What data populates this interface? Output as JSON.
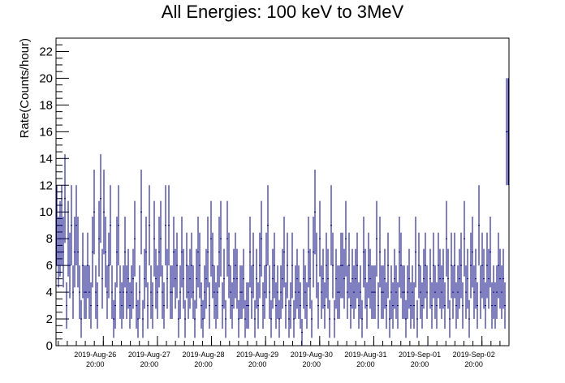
{
  "chart_data": {
    "type": "scatter",
    "title": "All Energies:  100 keV to 3MeV",
    "xlabel": "",
    "ylabel": "Rate(Counts/hour)",
    "ylim": [
      0,
      23
    ],
    "yticks": [
      0,
      2,
      4,
      6,
      8,
      10,
      12,
      14,
      16,
      18,
      20,
      22
    ],
    "x_start": "2019-08-25 23:00",
    "x_end": "2019-09-03 08:00",
    "x_tick_labels": [
      {
        "date": "2019-Aug-26",
        "time": "20:00",
        "at": "2019-08-26 20:00"
      },
      {
        "date": "2019-Aug-27",
        "time": "20:00",
        "at": "2019-08-27 20:00"
      },
      {
        "date": "2019-Aug-28",
        "time": "20:00",
        "at": "2019-08-28 20:00"
      },
      {
        "date": "2019-Aug-29",
        "time": "20:00",
        "at": "2019-08-29 20:00"
      },
      {
        "date": "2019-Aug-30",
        "time": "20:00",
        "at": "2019-08-30 20:00"
      },
      {
        "date": "2019-Aug-31",
        "time": "20:00",
        "at": "2019-08-31 20:00"
      },
      {
        "date": "2019-Sep-01",
        "time": "20:00",
        "at": "2019-09-01 20:00"
      },
      {
        "date": "2019-Sep-02",
        "time": "20:00",
        "at": "2019-09-02 20:00"
      }
    ],
    "grid": false,
    "error_bars": "sqrt(N)",
    "color": "#000080",
    "series": [
      {
        "values": [
          9,
          7,
          8,
          9,
          7,
          11,
          3,
          8,
          6,
          9,
          4,
          7,
          9,
          7,
          4,
          2,
          6,
          4,
          4,
          6,
          4,
          3,
          7,
          10,
          4,
          3,
          8,
          11,
          5,
          10,
          7,
          4,
          6,
          9,
          4,
          2,
          3,
          7,
          9,
          4,
          3,
          4,
          7,
          4,
          5,
          3,
          4,
          5,
          8,
          3,
          2,
          4,
          10,
          2,
          5,
          7,
          3,
          9,
          4,
          3,
          8,
          5,
          4,
          7,
          8,
          4,
          3,
          9,
          5,
          9,
          4,
          4,
          7,
          5,
          6,
          2,
          4,
          7,
          5,
          2,
          6,
          4,
          5,
          6,
          4,
          2,
          5,
          7,
          6,
          3,
          2,
          4,
          5,
          7,
          3,
          8,
          6,
          4,
          3,
          4,
          7,
          8,
          3,
          5,
          2,
          8,
          6,
          4,
          3,
          5,
          6,
          5,
          2,
          4,
          4,
          5,
          2,
          3,
          3,
          7,
          4,
          6,
          2,
          5,
          3,
          6,
          8,
          3,
          4,
          6,
          9,
          4,
          2,
          5,
          6,
          3,
          4,
          2,
          4,
          5,
          7,
          3,
          6,
          2,
          3,
          6,
          2,
          4,
          5,
          4,
          3,
          1,
          5,
          4,
          3,
          7,
          5,
          2,
          7,
          10,
          6,
          3,
          8,
          4,
          5,
          3,
          6,
          5,
          2,
          9,
          6,
          2,
          5,
          4,
          4,
          6,
          6,
          5,
          8,
          4,
          6,
          3,
          5,
          4,
          5,
          6,
          3,
          4,
          2,
          7,
          5,
          3,
          6,
          5,
          4,
          4,
          4,
          8,
          3,
          7,
          4,
          4,
          5,
          3,
          6,
          2,
          4,
          3,
          5,
          4,
          3,
          7,
          6,
          4,
          4,
          2,
          4,
          5,
          3,
          4,
          3,
          7,
          2,
          6,
          4,
          3,
          5,
          6,
          4,
          0,
          5,
          3,
          6,
          4,
          3,
          6,
          5,
          4,
          5,
          3,
          8,
          5,
          2,
          6,
          4,
          6,
          3,
          4,
          5,
          6,
          3,
          8,
          4,
          5,
          2,
          6,
          7,
          4,
          5,
          3,
          9,
          4,
          6,
          5,
          3,
          6,
          5,
          7,
          3,
          4,
          3,
          4,
          6,
          5,
          4,
          5,
          3,
          16,
          16
        ]
      }
    ]
  }
}
